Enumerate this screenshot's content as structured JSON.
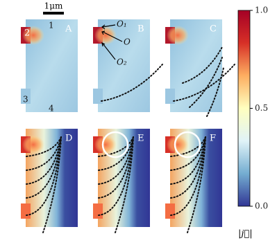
{
  "figure": {
    "scale_bar": "1μm",
    "panels": [
      {
        "label": "A"
      },
      {
        "label": "B"
      },
      {
        "label": "C"
      },
      {
        "label": "D"
      },
      {
        "label": "E"
      },
      {
        "label": "F"
      }
    ],
    "region_labels": [
      "1",
      "2",
      "3",
      "4"
    ],
    "point_labels": [
      "O₁",
      "O",
      "O₂"
    ]
  },
  "colorbar": {
    "label": "|j⃗|",
    "lim": [
      0,
      1
    ],
    "ticks": [
      {
        "value": 0,
        "label": "0.0"
      },
      {
        "value": 0.5,
        "label": "0.5"
      },
      {
        "value": 1,
        "label": "1.0"
      }
    ],
    "colors": [
      "#313695",
      "#74add1",
      "#e0f3f8",
      "#ffffbf",
      "#fdae61",
      "#d73027",
      "#a50026"
    ]
  }
}
